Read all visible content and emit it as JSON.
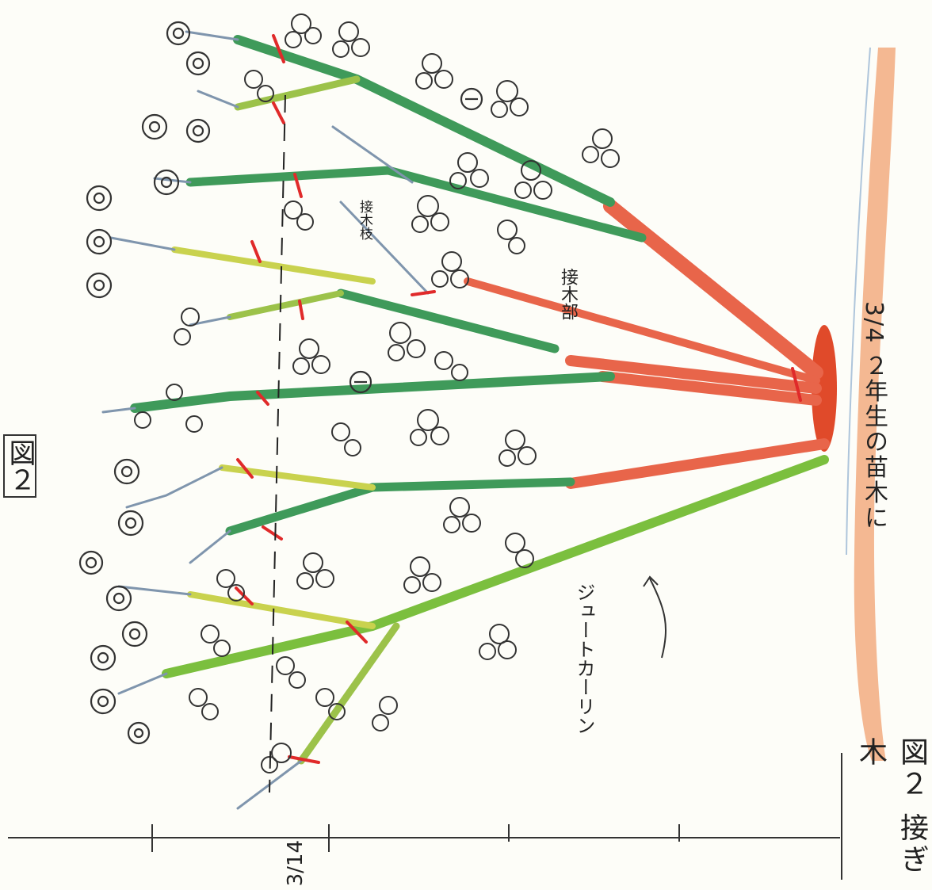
{
  "figure": {
    "label": "図２",
    "side_caption": "図２ 接ぎ木",
    "date_note": "3/4 ２年生の苗木に",
    "bottom_date": "3/14",
    "annotations": {
      "graft_point": "接木部",
      "small_branch": "接木枝",
      "shoot": "ジュートカーリン"
    }
  },
  "colors": {
    "rootstock": "#e8654a",
    "branch_dark": "#3f9a5a",
    "branch_light": "#9cc24a",
    "branch_yellow": "#c9d24e",
    "cut_mark": "#e02a2a",
    "ground": "#f0a070",
    "ink": "#333333"
  }
}
